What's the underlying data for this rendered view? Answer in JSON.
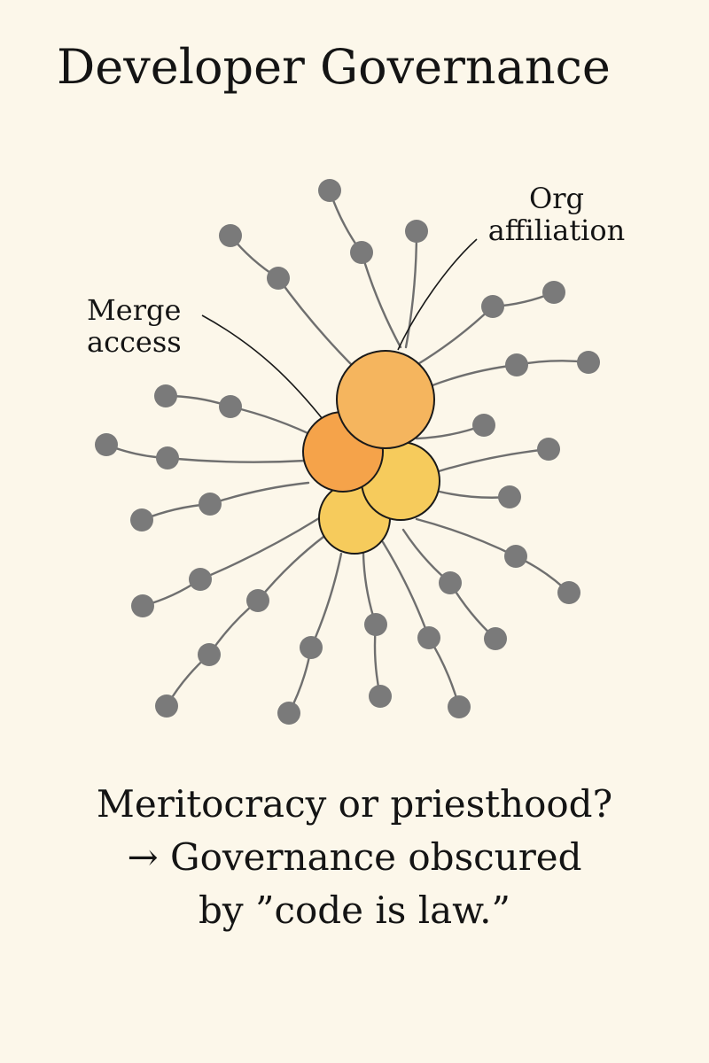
{
  "title": "Developer Governance",
  "labels": {
    "merge_access": [
      "Merge",
      "access"
    ],
    "org_affiliation": [
      "Org",
      "affiliation"
    ]
  },
  "caption": [
    "Meritocracy or priesthood?",
    "→ Governance obscured",
    "by ”code is law.”"
  ],
  "colors": {
    "background": "#fcf7ea",
    "spoke_node": "#7a7a7a",
    "spoke_line": "#6f6f6f",
    "core_orange": "#f5a34a",
    "core_light_orange": "#f5b55e",
    "core_yellow": "#f6cb5c"
  }
}
